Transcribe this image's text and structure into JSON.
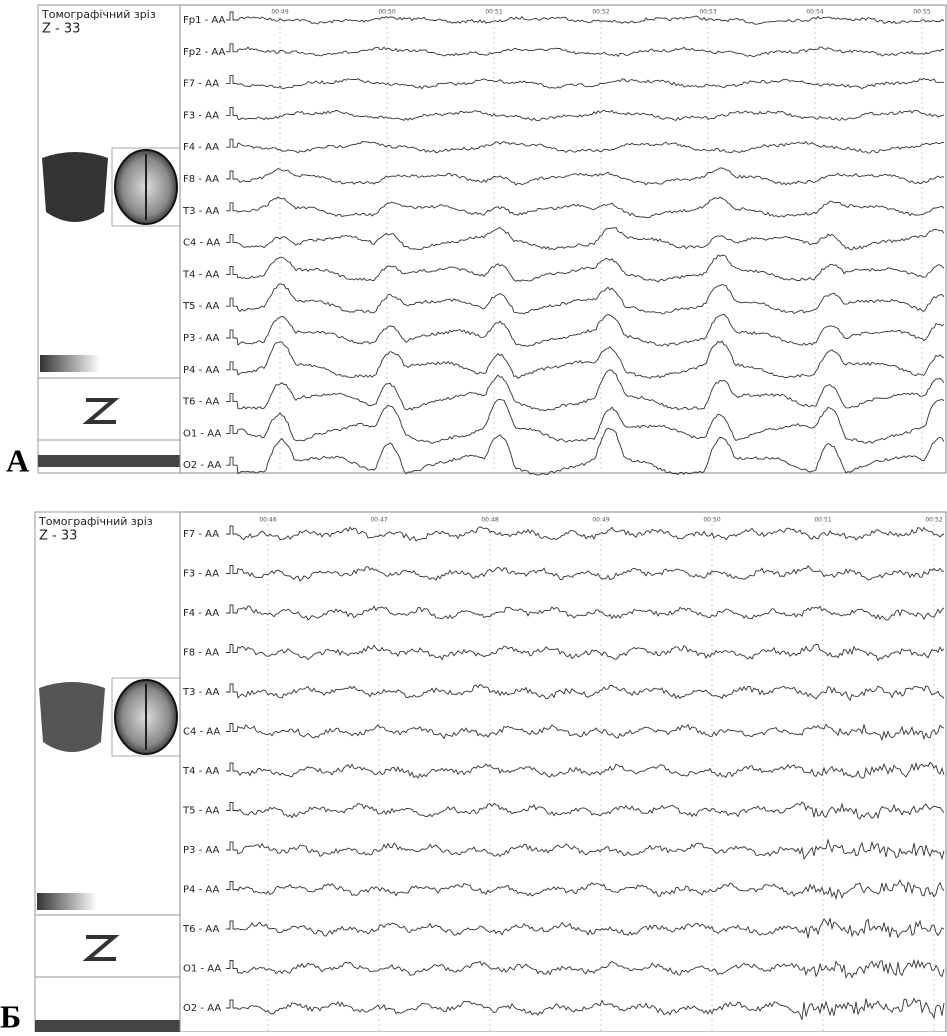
{
  "panels": [
    {
      "label": "А",
      "title": "Томографічний зріз",
      "slice": "Z - 33",
      "times": [
        "00:49",
        "00:50",
        "00:51",
        "00:52",
        "00:53",
        "00:54",
        "00:55"
      ],
      "channels": [
        "Fp1 - AA",
        "Fp2 - AA",
        "F7 - AA",
        "F3 - AA",
        "F4 - AA",
        "F8 - AA",
        "T3 - AA",
        "C4 - AA",
        "T4 - AA",
        "T5 - AA",
        "P3 - AA",
        "P4 - AA",
        "T6 - AA",
        "O1 - AA",
        "O2 - AA"
      ]
    },
    {
      "label": "Б",
      "title": "Томографічний зріз",
      "slice": "Z - 33",
      "times": [
        "00:46",
        "00:47",
        "00:48",
        "00:49",
        "00:50",
        "00:51",
        "00:52"
      ],
      "channels": [
        "F7 - AA",
        "F3 - AA",
        "F4 - AA",
        "F8 - AA",
        "T3 - AA",
        "C4 - AA",
        "T4 - AA",
        "T5 - AA",
        "P3 - AA",
        "P4 - AA",
        "T6 - AA",
        "O1 - AA",
        "O2 - AA"
      ]
    }
  ]
}
